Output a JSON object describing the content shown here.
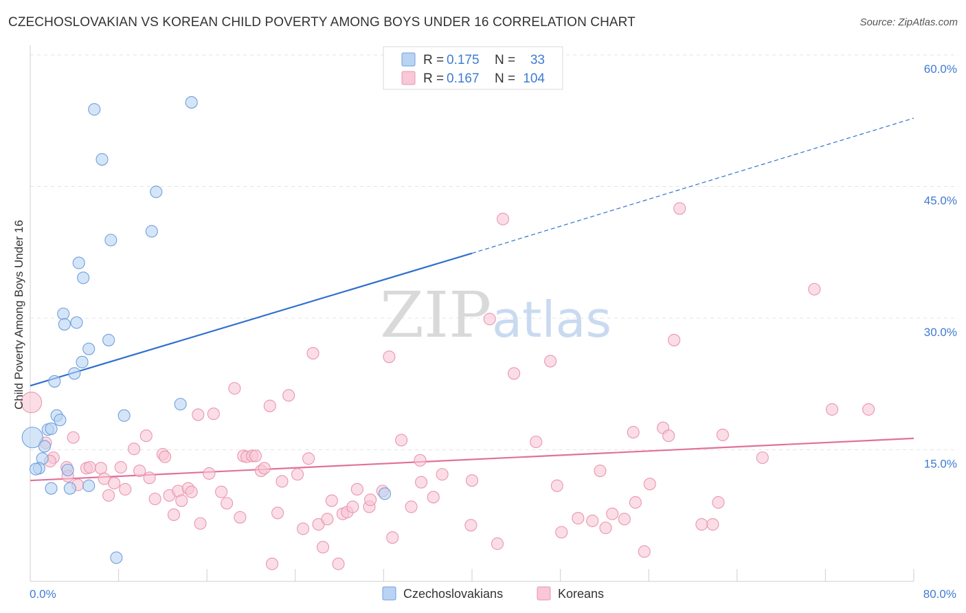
{
  "title": "CZECHOSLOVAKIAN VS KOREAN CHILD POVERTY AMONG BOYS UNDER 16 CORRELATION CHART",
  "source": "Source: ZipAtlas.com",
  "watermark": {
    "part1": "ZIP",
    "part2": "atlas"
  },
  "colors": {
    "blue_fill": "#b9d3f3",
    "blue_stroke": "#6f9fdc",
    "blue_line": "#2f6fcf",
    "pink_fill": "#f9c7d6",
    "pink_stroke": "#e995b0",
    "pink_line": "#e2709a",
    "grid": "#e3e3e3",
    "axis_label": "#3f7bd0"
  },
  "legend": {
    "rows": [
      {
        "r_label": "R = ",
        "r_value": "0.175",
        "n_label": "N = ",
        "n_value": "33"
      },
      {
        "r_label": "R = ",
        "r_value": "0.167",
        "n_label": "N = ",
        "n_value": "104"
      }
    ]
  },
  "bottom_legend": [
    "Czechoslovakians",
    "Koreans"
  ],
  "chart_data": {
    "type": "scatter",
    "ylabel": "Child Poverty Among Boys Under 16",
    "xlabel": "",
    "xlim": [
      0,
      80
    ],
    "ylim": [
      0,
      60
    ],
    "x_tick_labels": [
      "0.0%",
      "80.0%"
    ],
    "y_tick_labels": [
      "15.0%",
      "30.0%",
      "45.0%",
      "60.0%"
    ],
    "y_ticks": [
      15,
      30,
      45,
      60
    ],
    "grid": true,
    "legend_position": "top-center",
    "series": [
      {
        "name": "Czechoslovakians",
        "points": [
          [
            5.8,
            53.8
          ],
          [
            14.6,
            54.6
          ],
          [
            6.5,
            48.1
          ],
          [
            11.4,
            44.4
          ],
          [
            7.3,
            38.9
          ],
          [
            11.0,
            39.9
          ],
          [
            4.4,
            36.3
          ],
          [
            4.8,
            34.6
          ],
          [
            3.0,
            30.5
          ],
          [
            3.1,
            29.3
          ],
          [
            4.2,
            29.5
          ],
          [
            7.1,
            27.5
          ],
          [
            5.3,
            26.5
          ],
          [
            4.7,
            25.0
          ],
          [
            4.0,
            23.7
          ],
          [
            2.2,
            22.8
          ],
          [
            13.6,
            20.2
          ],
          [
            8.5,
            18.9
          ],
          [
            2.4,
            18.9
          ],
          [
            2.7,
            18.4
          ],
          [
            1.6,
            17.3
          ],
          [
            1.9,
            17.4
          ],
          [
            0.2,
            16.4
          ],
          [
            1.3,
            15.4
          ],
          [
            1.1,
            14.0
          ],
          [
            0.8,
            12.9
          ],
          [
            0.5,
            12.8
          ],
          [
            3.4,
            12.7
          ],
          [
            1.9,
            10.6
          ],
          [
            3.6,
            10.6
          ],
          [
            5.3,
            10.9
          ],
          [
            32.1,
            10.0
          ],
          [
            7.8,
            2.7
          ]
        ]
      },
      {
        "name": "Koreans",
        "points": [
          [
            0.1,
            20.4
          ],
          [
            1.4,
            15.8
          ],
          [
            3.9,
            16.4
          ],
          [
            2.1,
            14.1
          ],
          [
            1.8,
            13.7
          ],
          [
            3.3,
            13.0
          ],
          [
            3.4,
            12.0
          ],
          [
            4.3,
            11.0
          ],
          [
            5.1,
            12.9
          ],
          [
            5.4,
            13.0
          ],
          [
            6.4,
            12.9
          ],
          [
            6.7,
            11.7
          ],
          [
            7.1,
            9.8
          ],
          [
            7.6,
            11.2
          ],
          [
            8.2,
            13.0
          ],
          [
            8.6,
            10.5
          ],
          [
            9.4,
            15.1
          ],
          [
            9.9,
            12.6
          ],
          [
            10.5,
            16.6
          ],
          [
            10.8,
            11.8
          ],
          [
            11.3,
            9.4
          ],
          [
            12.0,
            14.5
          ],
          [
            12.2,
            14.2
          ],
          [
            12.6,
            9.8
          ],
          [
            13.0,
            7.6
          ],
          [
            13.4,
            10.3
          ],
          [
            13.7,
            9.2
          ],
          [
            14.3,
            10.6
          ],
          [
            14.6,
            10.2
          ],
          [
            15.4,
            6.6
          ],
          [
            16.2,
            12.3
          ],
          [
            16.6,
            19.1
          ],
          [
            17.3,
            10.2
          ],
          [
            17.8,
            8.9
          ],
          [
            18.5,
            22.0
          ],
          [
            19.0,
            7.3
          ],
          [
            19.3,
            14.3
          ],
          [
            19.6,
            14.2
          ],
          [
            20.1,
            14.3
          ],
          [
            20.9,
            12.6
          ],
          [
            21.2,
            12.9
          ],
          [
            21.7,
            20.0
          ],
          [
            21.9,
            2.0
          ],
          [
            22.4,
            7.8
          ],
          [
            22.8,
            11.4
          ],
          [
            23.4,
            21.2
          ],
          [
            24.2,
            12.2
          ],
          [
            24.7,
            6.0
          ],
          [
            25.2,
            14.0
          ],
          [
            25.6,
            26.0
          ],
          [
            26.1,
            6.5
          ],
          [
            26.5,
            3.9
          ],
          [
            26.9,
            7.1
          ],
          [
            27.3,
            9.2
          ],
          [
            27.9,
            2.0
          ],
          [
            28.3,
            7.7
          ],
          [
            28.7,
            7.9
          ],
          [
            29.2,
            8.5
          ],
          [
            29.6,
            10.5
          ],
          [
            30.7,
            8.5
          ],
          [
            31.9,
            10.3
          ],
          [
            32.5,
            25.6
          ],
          [
            32.8,
            5.0
          ],
          [
            33.6,
            16.1
          ],
          [
            34.5,
            8.5
          ],
          [
            35.3,
            13.8
          ],
          [
            35.4,
            11.3
          ],
          [
            36.5,
            9.6
          ],
          [
            37.3,
            12.2
          ],
          [
            39.9,
            6.4
          ],
          [
            41.6,
            29.9
          ],
          [
            42.3,
            4.3
          ],
          [
            42.8,
            41.3
          ],
          [
            43.8,
            23.7
          ],
          [
            45.8,
            15.9
          ],
          [
            47.1,
            25.1
          ],
          [
            47.7,
            10.9
          ],
          [
            48.1,
            5.6
          ],
          [
            49.6,
            7.2
          ],
          [
            50.9,
            6.9
          ],
          [
            51.6,
            12.6
          ],
          [
            52.1,
            6.1
          ],
          [
            52.7,
            7.7
          ],
          [
            53.8,
            7.1
          ],
          [
            54.6,
            17.0
          ],
          [
            54.8,
            9.0
          ],
          [
            55.6,
            3.4
          ],
          [
            56.1,
            11.1
          ],
          [
            57.3,
            17.5
          ],
          [
            57.8,
            16.6
          ],
          [
            58.3,
            27.5
          ],
          [
            58.8,
            42.5
          ],
          [
            60.8,
            6.5
          ],
          [
            61.8,
            6.5
          ],
          [
            62.3,
            9.0
          ],
          [
            62.7,
            16.7
          ],
          [
            66.3,
            14.1
          ],
          [
            71.0,
            33.3
          ],
          [
            72.6,
            19.6
          ],
          [
            75.9,
            19.6
          ],
          [
            20.4,
            14.3
          ],
          [
            40.0,
            11.5
          ],
          [
            30.8,
            9.3
          ],
          [
            15.2,
            19.0
          ]
        ]
      }
    ],
    "trendlines": [
      {
        "series": "Czechoslovakians",
        "solid": [
          [
            0,
            22.3
          ],
          [
            40,
            37.4
          ]
        ],
        "dashed": [
          [
            40,
            37.4
          ],
          [
            80,
            52.8
          ]
        ]
      },
      {
        "series": "Koreans",
        "solid": [
          [
            0,
            11.5
          ],
          [
            80,
            16.3
          ]
        ]
      }
    ]
  }
}
